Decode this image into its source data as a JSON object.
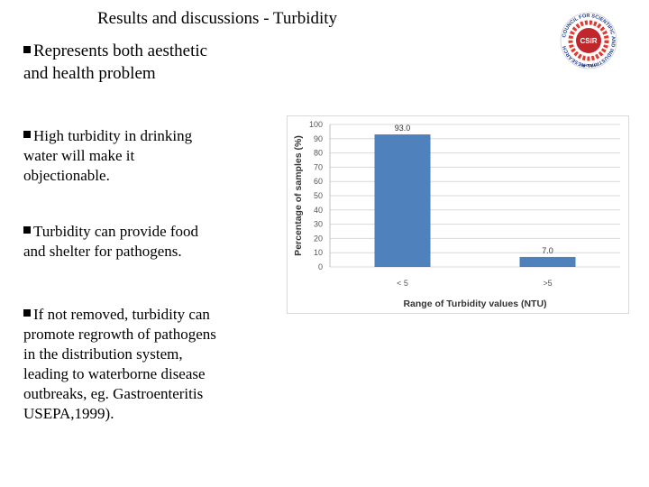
{
  "slide": {
    "title": "Results and discussions - Turbidity",
    "bullets": [
      "Represents both aesthetic",
      "and health problem",
      "High turbidity in drinking",
      "water will make it",
      "objectionable.",
      "Turbidity can provide food",
      "and shelter for pathogens.",
      "If not removed, turbidity can",
      "promote regrowth of pathogens",
      "in the distribution system,",
      "leading to waterborne disease",
      "outbreaks, eg. Gastroenteritis",
      "USEPA,1999)."
    ]
  },
  "logo": {
    "label": "CSIR",
    "ring_text": "COUNCIL FOR SCIENTIFIC AND INDUSTRIAL RESEARCH",
    "country": "GHANA",
    "colors": {
      "ring": "#e03a2f",
      "center": "#c0272d"
    }
  },
  "chart_data": {
    "type": "bar",
    "categories": [
      "< 5",
      ">5"
    ],
    "values": [
      93.0,
      7.0
    ],
    "value_labels": [
      "93.0",
      "7.0"
    ],
    "title": "",
    "xlabel": "Range of Turbidity values (NTU)",
    "ylabel": "Percentage of samples (%)",
    "ylim": [
      0,
      100
    ],
    "yticks": [
      0,
      10,
      20,
      30,
      40,
      50,
      60,
      70,
      80,
      90,
      100
    ],
    "grid": true,
    "bar_color": "#4f81bd"
  }
}
